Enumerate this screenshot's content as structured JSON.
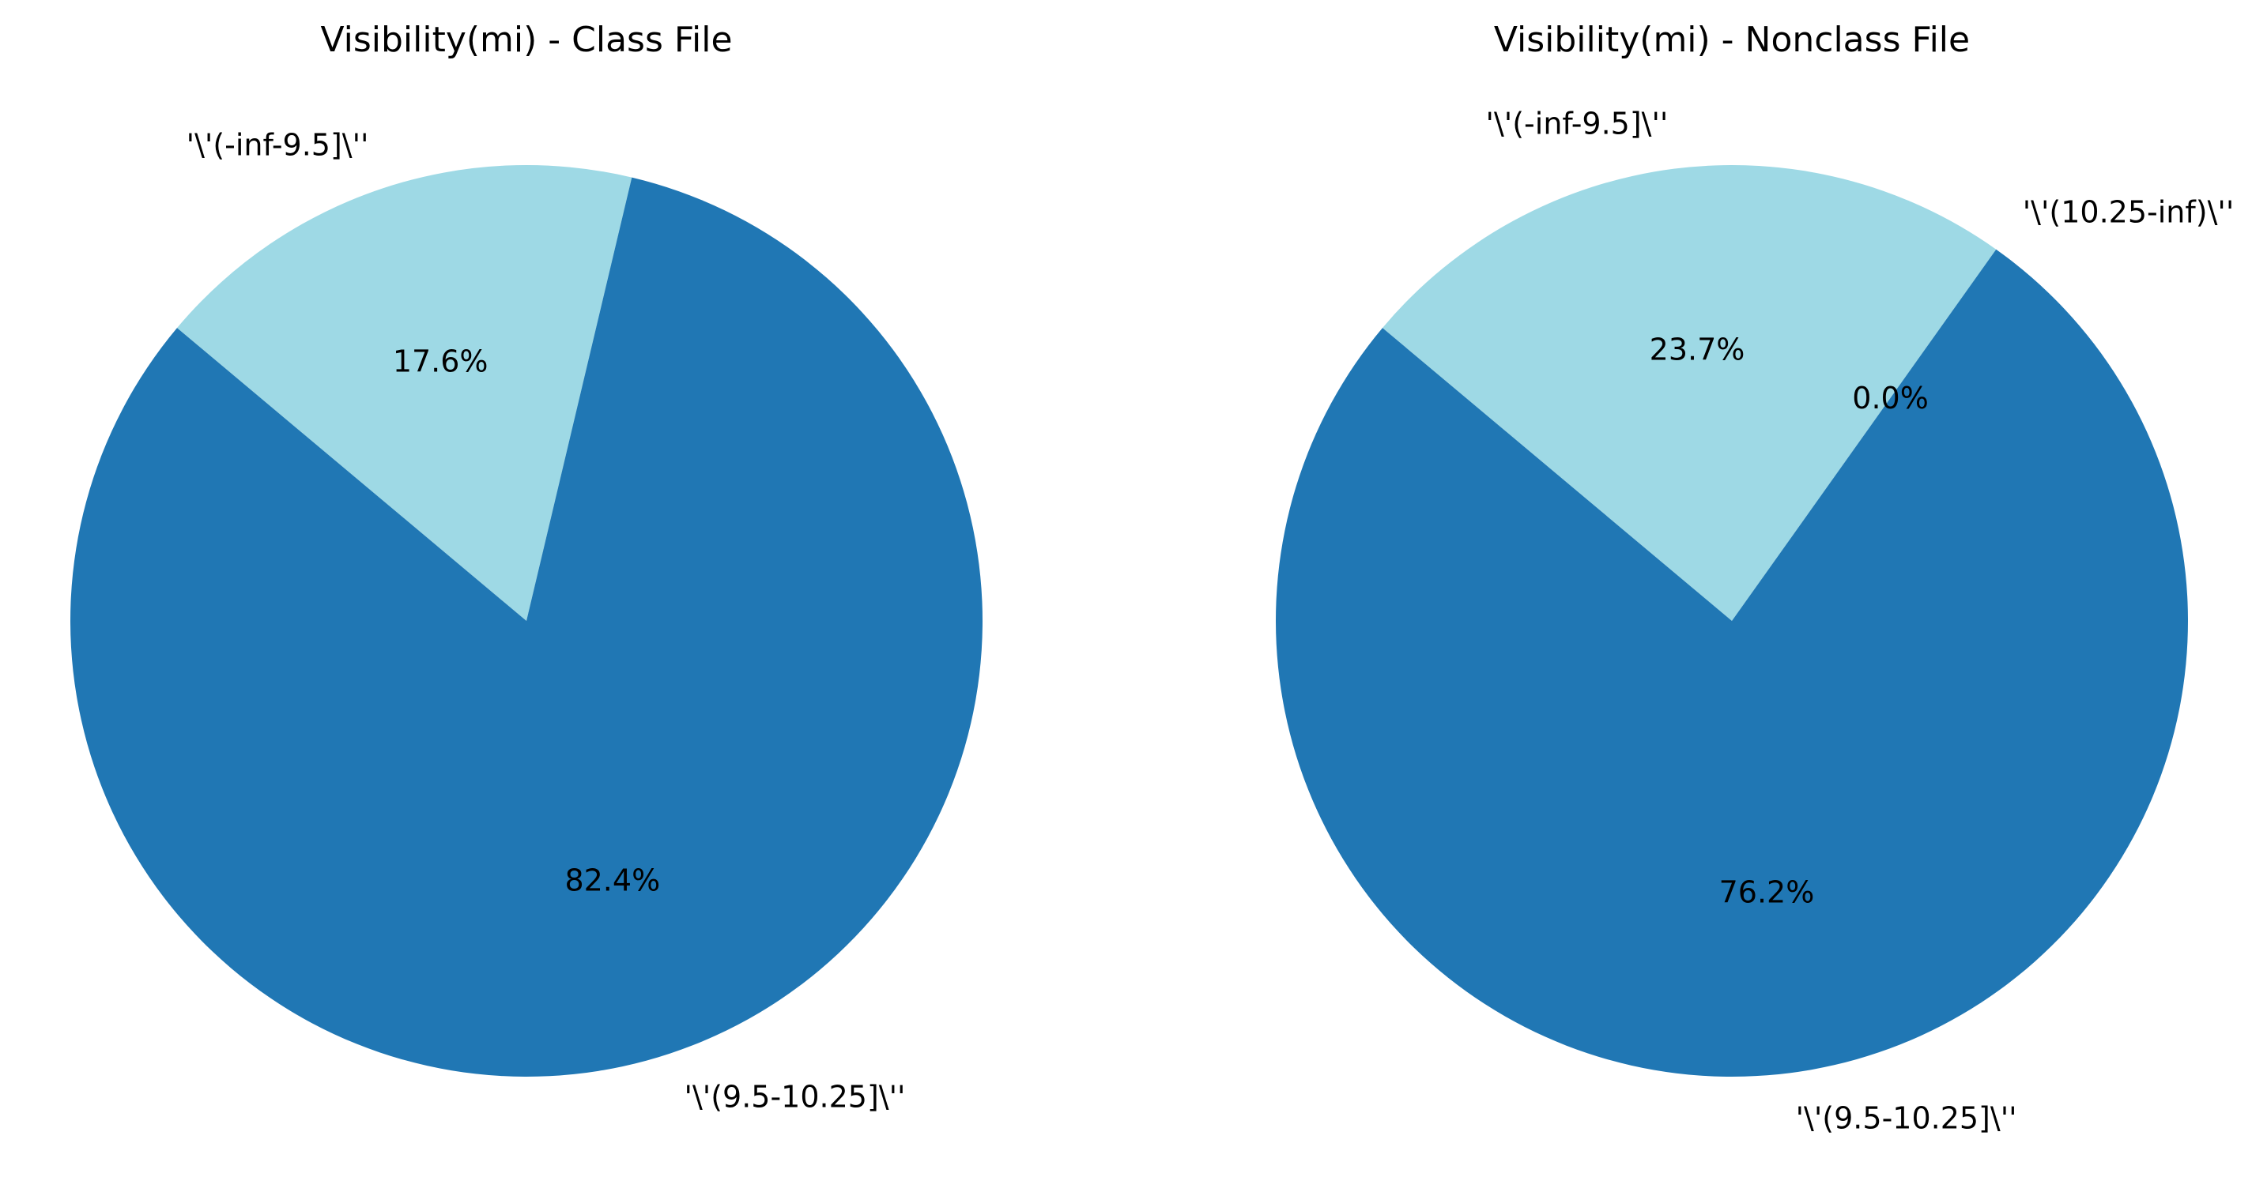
{
  "chart_data": [
    {
      "type": "pie",
      "title": "Visibility(mi) - Class File",
      "categories": [
        "'\\'(-inf-9.5]\\''",
        "'\\'(9.5-10.25]\\''"
      ],
      "values": [
        17.6,
        82.4
      ],
      "value_labels": [
        "17.6%",
        "82.4%"
      ],
      "colors": [
        "#9ed9e5",
        "#2077b4"
      ],
      "legend": "none"
    },
    {
      "type": "pie",
      "title": "Visibility(mi) - Nonclass File",
      "categories": [
        "'\\'(-inf-9.5]\\''",
        "'\\'(10.25-inf)\\''",
        "'\\'(9.5-10.25]\\''"
      ],
      "values": [
        23.7,
        0.0,
        76.2
      ],
      "value_labels": [
        "23.7%",
        "0.0%",
        "76.2%"
      ],
      "colors": [
        "#9ed9e5",
        "#9ed9e5",
        "#2077b4"
      ],
      "legend": "none"
    }
  ]
}
